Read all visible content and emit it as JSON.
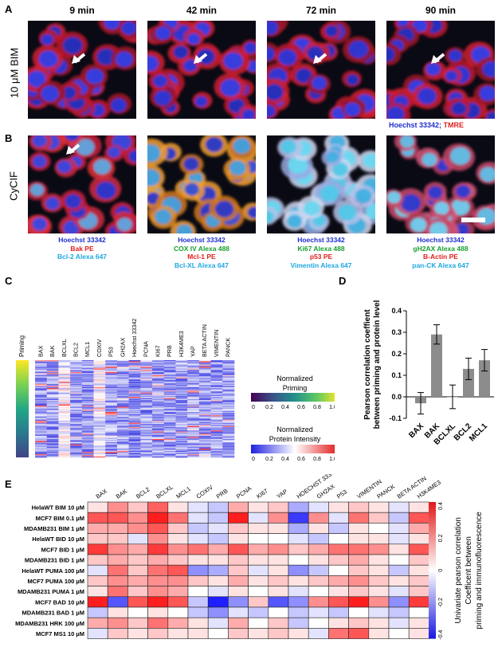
{
  "panels": {
    "A": {
      "letter": "A",
      "timepoints": [
        "9 min",
        "42 min",
        "72 min",
        "90 min"
      ],
      "row_label": "10 μM BIM",
      "legend_blue": "Hoechst 33342",
      "legend_sep": "; ",
      "legend_red": "TMRE"
    },
    "B": {
      "letter": "B",
      "row_label": "CyCIF",
      "captions": [
        [
          {
            "text": "Hoechst 33342",
            "color": "#1f2fd0"
          },
          {
            "text": "Bak PE",
            "color": "#e02020"
          },
          {
            "text": "Bcl-2 Alexa 647",
            "color": "#1ea8e0"
          }
        ],
        [
          {
            "text": "Hoechst 33342",
            "color": "#1f2fd0"
          },
          {
            "text": "COX IV Alexa 488",
            "color": "#18a030"
          },
          {
            "text": "Mcl-1 PE",
            "color": "#e02020"
          },
          {
            "text": "Bcl-XL Alexa 647",
            "color": "#1ea8e0"
          }
        ],
        [
          {
            "text": "Hoechst 33342",
            "color": "#1f2fd0"
          },
          {
            "text": "Ki67 Alexa 488",
            "color": "#18a030"
          },
          {
            "text": "p53 PE",
            "color": "#e02020"
          },
          {
            "text": "Vimentin Alexa 647",
            "color": "#1ea8e0"
          }
        ],
        [
          {
            "text": "Hoechst 33342",
            "color": "#1f2fd0"
          },
          {
            "text": "gH2AX Alexa 488",
            "color": "#18a030"
          },
          {
            "text": "B-Actin PE",
            "color": "#e02020"
          },
          {
            "text": "pan-CK Alexa 647",
            "color": "#1ea8e0"
          }
        ]
      ]
    },
    "C": {
      "letter": "C",
      "priming_label": "Priming",
      "columns": [
        "BAX",
        "BAK",
        "BCLXL",
        "BCL2",
        "MCL1",
        "COXIV",
        "P53",
        "GH2AX",
        "Hoechst 33342",
        "PCNA",
        "KI67",
        "PRB",
        "H3K4ME3",
        "YAP",
        "BETA ACTIN",
        "VIMENTIN",
        "PANCK"
      ],
      "legend1_title": [
        "Normalized",
        "Priming"
      ],
      "legend2_title": [
        "Normalized",
        "Protein Intensity"
      ],
      "ticks": [
        "0",
        "0.2",
        "0.4",
        "0.6",
        "0.8",
        "1.0"
      ]
    },
    "D": {
      "letter": "D"
    },
    "E": {
      "letter": "E",
      "colorbar_ticks": [
        "0.4",
        "0.2",
        "0",
        "-0.2",
        "-0.4"
      ],
      "colorbar_label": [
        "Univariate pearson correlation",
        "Coefficent between",
        "priming and immunofluorescence"
      ]
    }
  },
  "chart_data": [
    {
      "type": "bar",
      "categories": [
        "BAX",
        "BAK",
        "BCLXL",
        "BCL2",
        "MCL1"
      ],
      "values": [
        -0.03,
        0.29,
        0.0,
        0.13,
        0.17
      ],
      "errors": [
        0.05,
        0.045,
        0.055,
        0.05,
        0.05
      ],
      "ylabel": "Pearson correlation coeffient between priming and protein level",
      "ylim": [
        -0.1,
        0.4
      ],
      "yticks": [
        "-0.1",
        "0.0",
        "0.1",
        "0.2",
        "0.3",
        "0.4"
      ]
    },
    {
      "type": "heatmap",
      "columns": [
        "BAX",
        "BAK",
        "BCL2",
        "BCLXL",
        "MCL1",
        "COXIV",
        "PRB",
        "PCNA",
        "KI67",
        "YAP",
        "HOECHST 33342",
        "GH2AX",
        "P53",
        "VIMENTIN",
        "PANCK",
        "BETA ACTIN",
        "H3K4ME3"
      ],
      "rows": [
        "HelaWT BIM 10 µM",
        "MCF7 BIM 0.1 µM",
        "MDAMB231 BIM 1 µM",
        "HelaWT BID 10 µM",
        "MCF7 BID 1 µM",
        "MDAMB231 BID 1 µM",
        "HelaWT PUMA 100 µM",
        "MCF7 PUMA 100 µM",
        "MDAMB231 PUMA 1 µM",
        "MCF7 BAD 10 µM",
        "MDAMB231 BAD 1 µM",
        "MDAMB231 HRK 100 µM",
        "MCF7 MS1 10 µM"
      ],
      "values": [
        [
          0.05,
          0.2,
          0.1,
          0.28,
          0.05,
          -0.05,
          -0.1,
          0.15,
          0.05,
          0.1,
          -0.15,
          -0.05,
          0.05,
          0.1,
          0.05,
          -0.05,
          0.05
        ],
        [
          0.3,
          0.3,
          0.2,
          0.4,
          0.25,
          -0.05,
          -0.1,
          0.4,
          -0.05,
          0.2,
          -0.35,
          0.2,
          -0.05,
          0.25,
          0.1,
          -0.1,
          0.3
        ],
        [
          0.15,
          0.15,
          0.2,
          0.3,
          0.1,
          -0.1,
          -0.05,
          0.1,
          0.05,
          0.05,
          -0.15,
          0.05,
          -0.1,
          0.05,
          0.0,
          -0.05,
          0.15
        ],
        [
          0.1,
          0.1,
          -0.05,
          0.2,
          0.05,
          -0.05,
          -0.1,
          0.05,
          0.0,
          0.0,
          -0.05,
          -0.1,
          0.0,
          0.05,
          0.05,
          -0.05,
          0.05
        ],
        [
          0.35,
          0.2,
          0.15,
          0.35,
          0.2,
          0.25,
          0.15,
          0.3,
          0.15,
          0.2,
          0.1,
          0.15,
          0.25,
          0.25,
          0.2,
          0.05,
          0.3
        ],
        [
          0.1,
          0.15,
          0.1,
          0.15,
          0.1,
          0.05,
          0.05,
          0.1,
          0.05,
          0.05,
          0.0,
          0.05,
          0.1,
          0.15,
          0.05,
          0.0,
          0.1
        ],
        [
          -0.05,
          0.25,
          0.1,
          0.25,
          0.3,
          -0.2,
          -0.15,
          0.1,
          -0.05,
          0.05,
          -0.2,
          -0.1,
          0.0,
          0.1,
          0.05,
          -0.1,
          0.05
        ],
        [
          0.1,
          0.2,
          0.15,
          0.2,
          0.2,
          0.1,
          0.05,
          0.15,
          0.05,
          0.1,
          0.05,
          0.1,
          0.15,
          0.2,
          0.1,
          0.05,
          0.1
        ],
        [
          0.05,
          0.25,
          0.1,
          0.2,
          0.15,
          0.0,
          -0.05,
          0.05,
          0.0,
          0.05,
          -0.05,
          0.0,
          0.05,
          0.1,
          0.05,
          -0.05,
          0.1
        ],
        [
          0.4,
          -0.3,
          0.3,
          0.4,
          0.3,
          -0.1,
          -0.4,
          -0.2,
          0.1,
          -0.3,
          -0.2,
          0.2,
          0.3,
          0.4,
          0.2,
          -0.2,
          0.35
        ],
        [
          -0.1,
          0.05,
          0.0,
          0.05,
          0.0,
          -0.1,
          -0.2,
          -0.05,
          -0.1,
          0.0,
          -0.1,
          -0.05,
          -0.1,
          0.0,
          -0.05,
          -0.1,
          0.0
        ],
        [
          0.15,
          0.2,
          0.1,
          0.25,
          0.15,
          0.05,
          -0.05,
          0.15,
          0.0,
          0.1,
          -0.1,
          0.0,
          0.05,
          0.1,
          0.05,
          -0.05,
          0.05
        ],
        [
          -0.05,
          0.1,
          0.05,
          0.1,
          0.05,
          0.05,
          0.0,
          0.1,
          0.05,
          0.1,
          0.05,
          -0.05,
          0.25,
          0.3,
          0.05,
          0.0,
          0.05
        ]
      ],
      "vmin": -0.4,
      "vmax": 0.4
    }
  ]
}
